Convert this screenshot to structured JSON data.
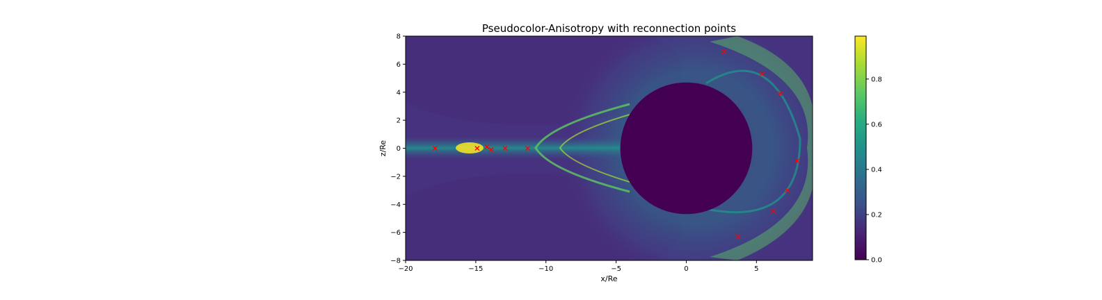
{
  "chart_data": {
    "type": "heatmap",
    "title": "Pseudocolor-Anisotropy with reconnection points",
    "xlabel": "x/Re",
    "ylabel": "z/Re",
    "xlim": [
      -20,
      9
    ],
    "ylim": [
      -8,
      8
    ],
    "xticks": [
      -20,
      -15,
      -10,
      -5,
      0,
      5
    ],
    "xtick_labels": [
      "−20",
      "−15",
      "−10",
      "−5",
      "0",
      "5"
    ],
    "yticks": [
      -8,
      -6,
      -4,
      -2,
      0,
      2,
      4,
      6,
      8
    ],
    "ytick_labels": [
      "−8",
      "−6",
      "−4",
      "−2",
      "0",
      "2",
      "4",
      "6",
      "8"
    ],
    "colorbar": {
      "colormap": "viridis",
      "range": [
        0.0,
        0.99
      ],
      "ticks": [
        0.0,
        0.2,
        0.4,
        0.6,
        0.8
      ],
      "tick_labels": [
        "0.0",
        "0.2",
        "0.4",
        "0.6",
        "0.8"
      ]
    },
    "inner_boundary_radius": 4.7,
    "reconnection_points": {
      "marker": "x",
      "color": "#ff0000",
      "x": [
        -17.9,
        -14.9,
        -14.2,
        -13.9,
        -12.9,
        -11.3,
        2.7,
        5.4,
        6.7,
        7.9,
        7.2,
        6.2,
        3.7
      ],
      "y": [
        0.0,
        0.0,
        0.1,
        -0.1,
        0.0,
        0.0,
        6.9,
        5.3,
        3.9,
        -0.9,
        -3.0,
        -4.5,
        -6.3
      ]
    }
  }
}
